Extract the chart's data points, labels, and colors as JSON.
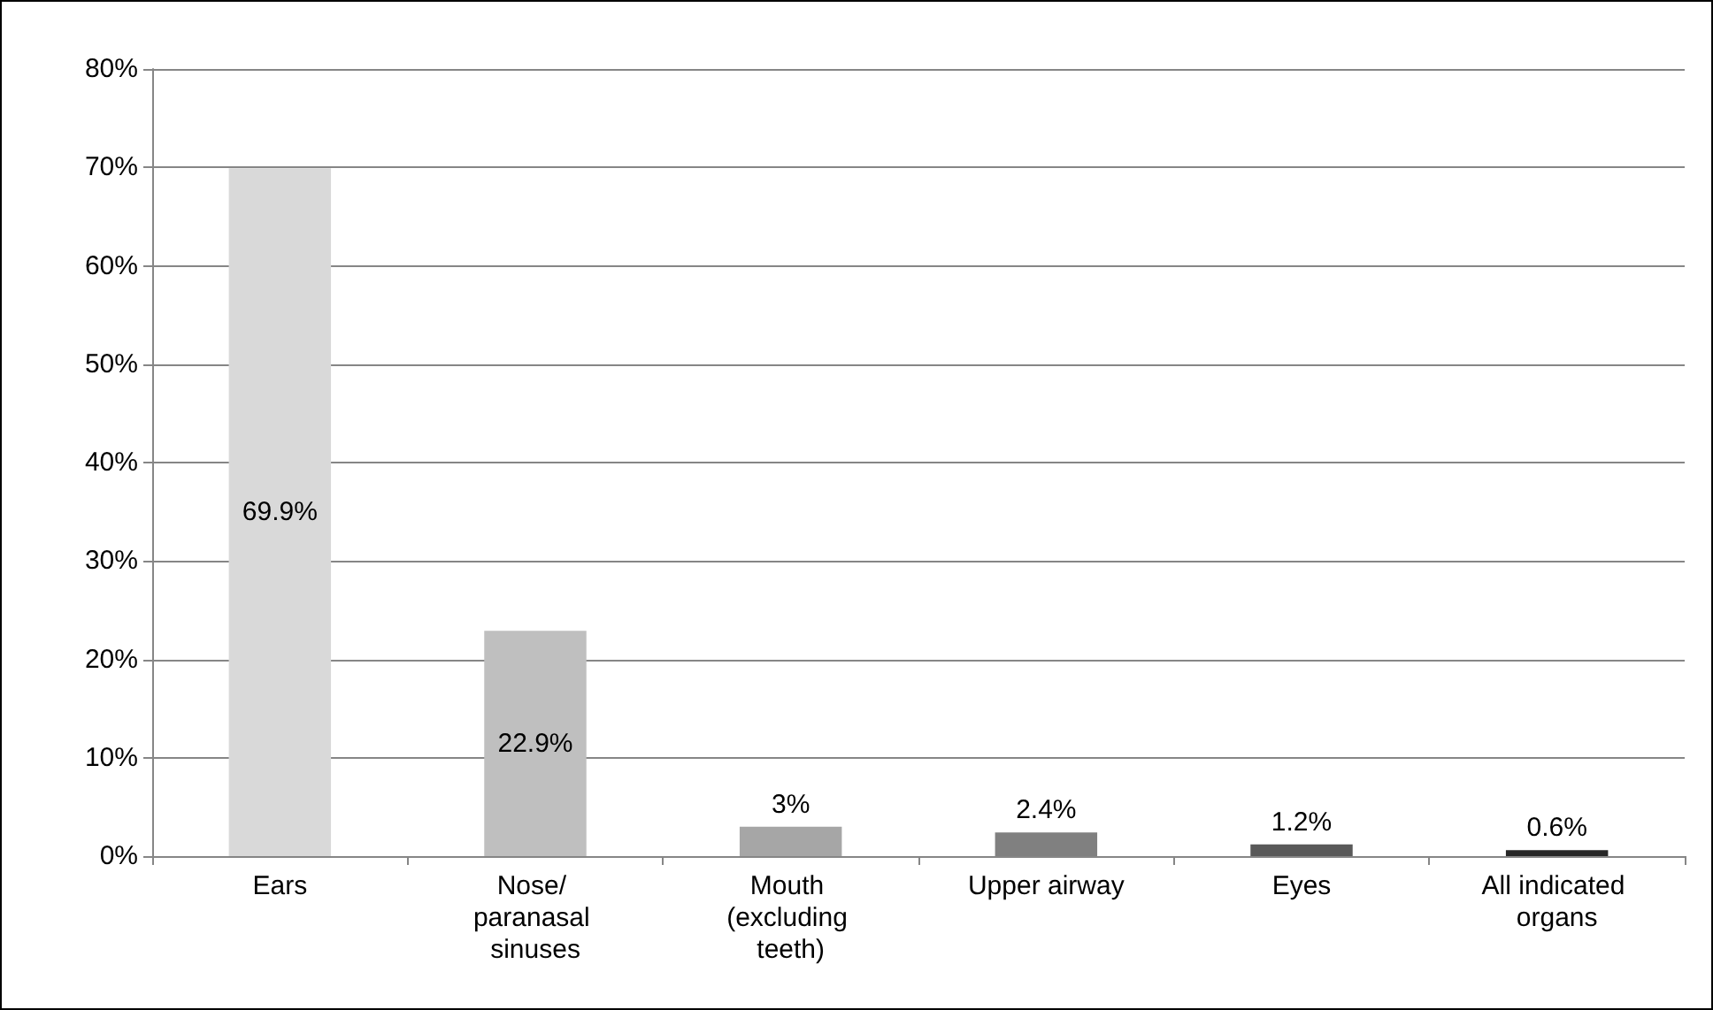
{
  "chart_data": {
    "type": "bar",
    "categories": [
      "Ears",
      "Nose/ paranasal sinuses",
      "Mouth (excluding teeth)",
      "Upper airway",
      "Eyes",
      "All indicated organs"
    ],
    "values": [
      69.9,
      22.9,
      3,
      2.4,
      1.2,
      0.6
    ],
    "colors": [
      "#d9d9d9",
      "#bfbfbf",
      "#a6a6a6",
      "#808080",
      "#595959",
      "#262626"
    ],
    "value_labels": [
      "69.9%",
      "22.9%",
      "3%",
      "2.4%",
      "1.2%",
      "0.6%"
    ],
    "ylim": [
      0,
      80
    ],
    "yticks": [
      {
        "value": 0,
        "label": "0%"
      },
      {
        "value": 10,
        "label": "10%"
      },
      {
        "value": 20,
        "label": "20%"
      },
      {
        "value": 30,
        "label": "30%"
      },
      {
        "value": 40,
        "label": "40%"
      },
      {
        "value": 50,
        "label": "50%"
      },
      {
        "value": 60,
        "label": "60%"
      },
      {
        "value": 70,
        "label": "70%"
      },
      {
        "value": 80,
        "label": "80%"
      }
    ],
    "grid": "y"
  }
}
